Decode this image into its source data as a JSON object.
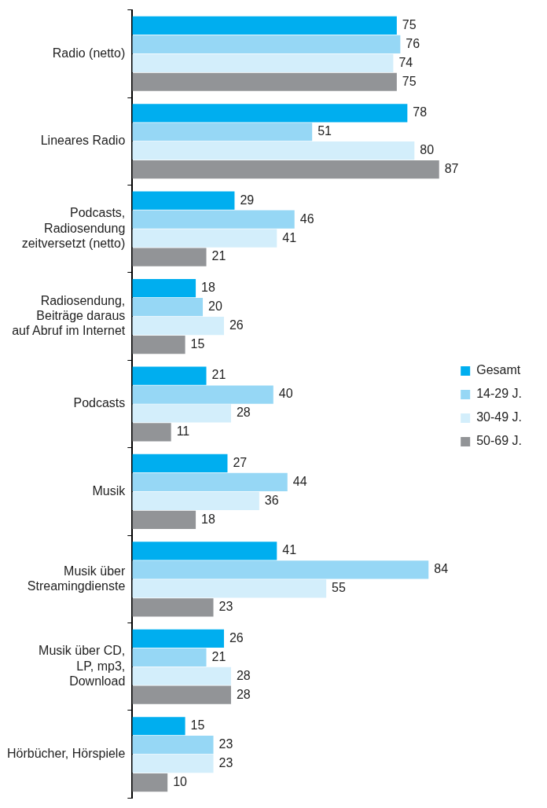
{
  "chart_data": {
    "type": "bar",
    "orientation": "horizontal",
    "categories": [
      "Radio (netto)",
      "Lineares Radio",
      "Podcasts,\nRadiosendung\nzeitversetzt (netto)",
      "Radiosendung,\nBeiträge daraus\nauf Abruf im Internet",
      "Podcasts",
      "Musik",
      "Musik über\nStreamingdienste",
      "Musik über CD,\nLP, mp3,\nDownload",
      "Hörbücher, Hörspiele"
    ],
    "series": [
      {
        "name": "Gesamt",
        "color": "#00aeef",
        "values": [
          75,
          78,
          29,
          18,
          21,
          27,
          41,
          26,
          15
        ]
      },
      {
        "name": "14-29 J.",
        "color": "#96d7f5",
        "values": [
          76,
          51,
          46,
          20,
          40,
          44,
          84,
          21,
          23
        ]
      },
      {
        "name": "30-49 J.",
        "color": "#d3eefb",
        "values": [
          74,
          80,
          41,
          26,
          28,
          36,
          55,
          28,
          23
        ]
      },
      {
        "name": "50-69 J.",
        "color": "#929497",
        "values": [
          75,
          87,
          21,
          15,
          11,
          18,
          23,
          28,
          10
        ]
      }
    ],
    "data_labels": true,
    "legend": "right",
    "tick_labels": "y"
  }
}
